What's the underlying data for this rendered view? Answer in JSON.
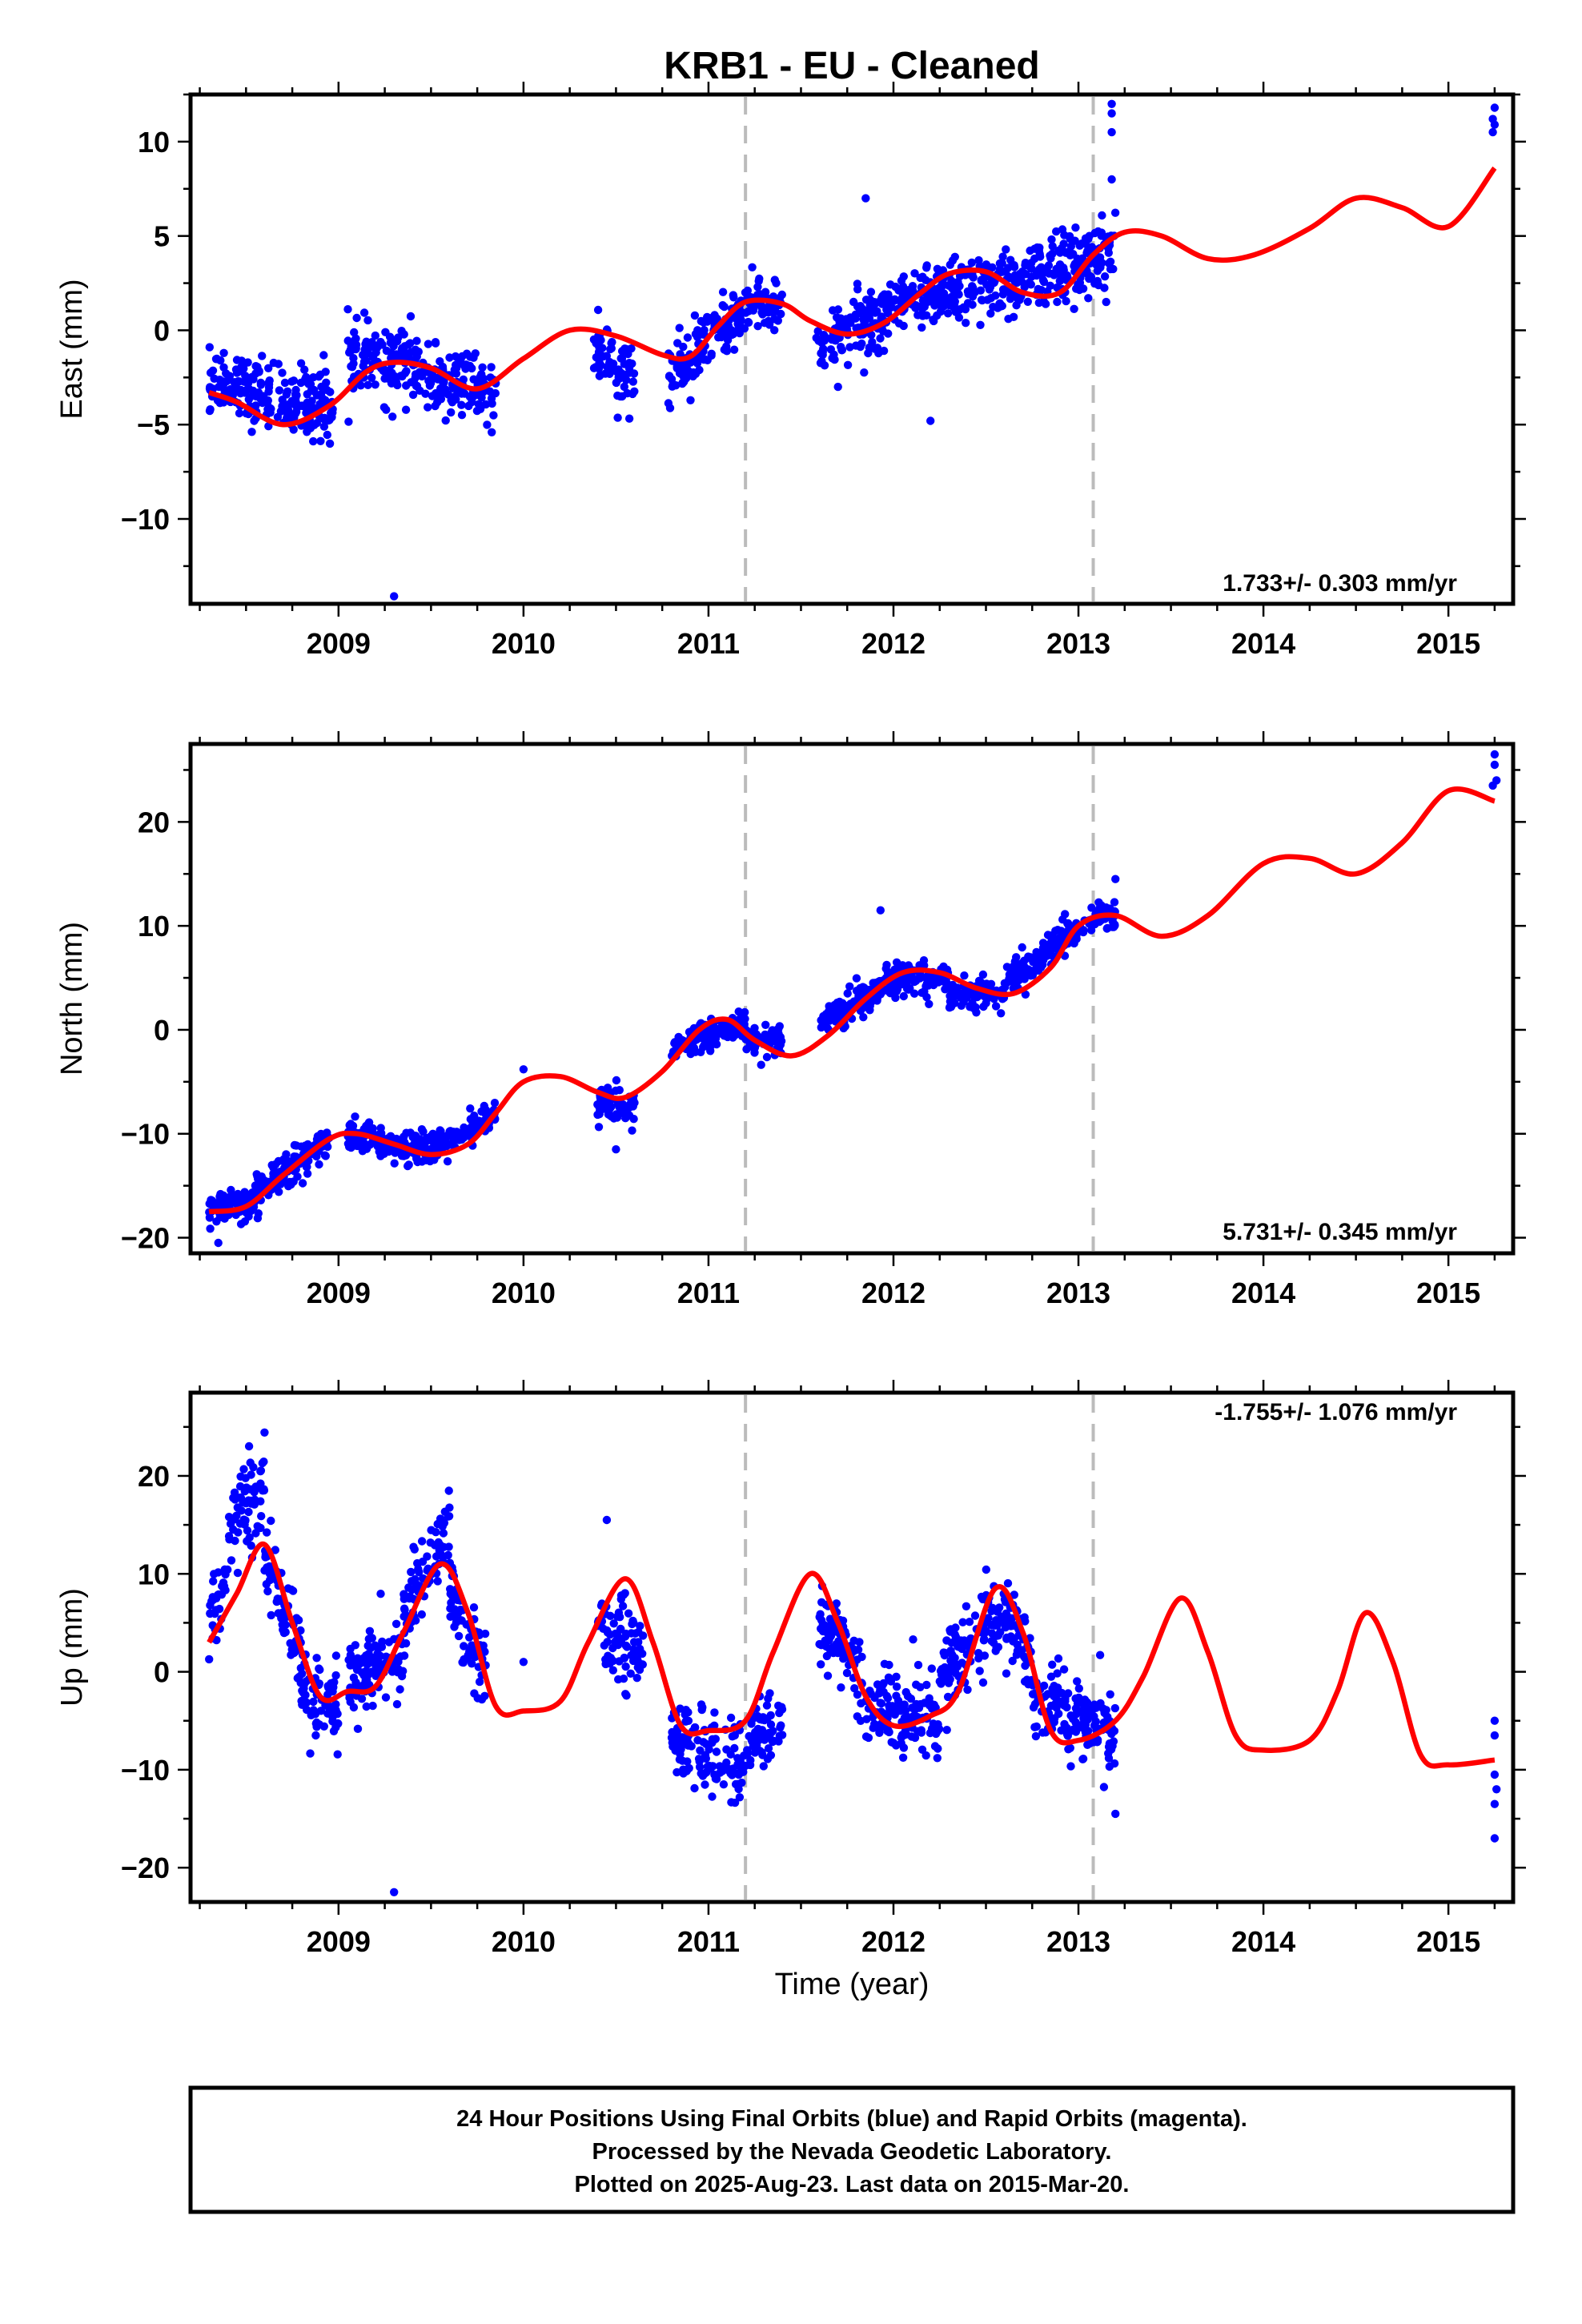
{
  "chart_data": {
    "type": "scatter",
    "title": "KRB1  - EU - Cleaned",
    "xlabel": "Time (year)",
    "xlim": [
      2008.2,
      2015.35
    ],
    "x_ticks": [
      2009,
      2010,
      2011,
      2012,
      2013,
      2014,
      2015
    ],
    "equipment_change_lines": [
      2011.2,
      2013.08
    ],
    "colors": {
      "observations": "#0000ff",
      "model": "#ff0000",
      "equipment_line": "#bbbbbb"
    },
    "legend": "none",
    "panels": [
      {
        "name": "East",
        "ylabel": "East (mm)",
        "ylim": [
          -14.5,
          12.5
        ],
        "y_ticks": [
          -10,
          -5,
          0,
          5,
          10
        ],
        "rate_text": "1.733+/- 0.303 mm/yr",
        "rate_position": "bottom-right",
        "model_curve": {
          "x": [
            2008.3,
            2008.45,
            2008.7,
            2008.95,
            2009.15,
            2009.3,
            2009.5,
            2009.75,
            2010.0,
            2010.25,
            2010.5,
            2010.75,
            2010.9,
            2011.05,
            2011.2,
            2011.4,
            2011.55,
            2011.75,
            2011.95,
            2012.15,
            2012.3,
            2012.5,
            2012.7,
            2012.9,
            2013.08,
            2013.25,
            2013.45,
            2013.7,
            2013.95,
            2014.25,
            2014.5,
            2014.75,
            2015.0,
            2015.25
          ],
          "y": [
            -3.3,
            -3.8,
            -5.0,
            -4.0,
            -2.2,
            -1.7,
            -2.0,
            -3.1,
            -1.5,
            0.0,
            -0.3,
            -1.3,
            -1.4,
            0.2,
            1.5,
            1.4,
            0.5,
            -0.2,
            0.4,
            2.0,
            3.0,
            3.1,
            2.0,
            2.0,
            4.0,
            5.2,
            5.0,
            3.8,
            4.0,
            5.4,
            7.0,
            6.5,
            5.5,
            8.6
          ]
        },
        "data_segments": [
          {
            "x": [
              2008.3,
              2008.97
            ],
            "mean": [
              -2.8,
              -4.0
            ],
            "spread": 1.5
          },
          {
            "x": [
              2009.05,
              2009.45
            ],
            "mean": [
              -1.5,
              -2.0
            ],
            "spread": 1.6
          },
          {
            "x": [
              2009.45,
              2009.85
            ],
            "mean": [
              -2.5,
              -3.3
            ],
            "spread": 1.4
          },
          {
            "x": [
              2010.38,
              2010.6
            ],
            "mean": [
              -1.6,
              -2.4
            ],
            "spread": 1.5
          },
          {
            "x": [
              2010.78,
              2010.95
            ],
            "mean": [
              -2.5,
              -1.2
            ],
            "spread": 1.5
          },
          {
            "x": [
              2010.95,
              2011.2
            ],
            "mean": [
              -0.8,
              1.2
            ],
            "spread": 1.2
          },
          {
            "x": [
              2011.2,
              2011.4
            ],
            "mean": [
              1.5,
              1.2
            ],
            "spread": 1.0
          },
          {
            "x": [
              2011.58,
              2011.95
            ],
            "mean": [
              -0.8,
              0.8
            ],
            "spread": 1.5
          },
          {
            "x": [
              2011.95,
              2012.55
            ],
            "mean": [
              1.2,
              2.5
            ],
            "spread": 1.3
          },
          {
            "x": [
              2012.55,
              2013.08
            ],
            "mean": [
              2.2,
              3.8
            ],
            "spread": 1.5
          },
          {
            "x": [
              2013.08,
              2013.2
            ],
            "mean": [
              4.0,
              4.3
            ],
            "spread": 1.5
          }
        ],
        "outliers": [
          [
            2009.3,
            -14.1
          ],
          [
            2011.85,
            7.0
          ],
          [
            2012.2,
            -4.8
          ],
          [
            2013.18,
            12.0
          ],
          [
            2013.18,
            11.5
          ],
          [
            2013.18,
            10.5
          ],
          [
            2013.18,
            8.0
          ],
          [
            2015.25,
            11.8
          ],
          [
            2015.24,
            11.2
          ],
          [
            2015.25,
            10.9
          ],
          [
            2015.24,
            10.5
          ],
          [
            2013.15,
            1.5
          ],
          [
            2011.7,
            -3.0
          ]
        ]
      },
      {
        "name": "North",
        "ylabel": "North (mm)",
        "ylim": [
          -21.5,
          27.5
        ],
        "y_ticks": [
          -20,
          -10,
          0,
          10,
          20
        ],
        "rate_text": "5.731+/- 0.345 mm/yr",
        "rate_position": "bottom-right",
        "model_curve": {
          "x": [
            2008.3,
            2008.5,
            2008.7,
            2008.95,
            2009.1,
            2009.3,
            2009.5,
            2009.7,
            2009.85,
            2010.0,
            2010.2,
            2010.4,
            2010.55,
            2010.75,
            2010.95,
            2011.1,
            2011.25,
            2011.45,
            2011.65,
            2011.85,
            2012.05,
            2012.25,
            2012.45,
            2012.65,
            2012.85,
            2013.0,
            2013.2,
            2013.45,
            2013.7,
            2014.0,
            2014.25,
            2014.5,
            2014.75,
            2015.0,
            2015.25
          ],
          "y": [
            -17.5,
            -17.0,
            -14.0,
            -10.5,
            -10.0,
            -11.0,
            -12.0,
            -11.0,
            -8.0,
            -5.0,
            -4.5,
            -6.0,
            -6.5,
            -4.0,
            0.0,
            1.0,
            -1.0,
            -2.5,
            -0.5,
            3.0,
            5.5,
            5.5,
            4.0,
            3.5,
            6.0,
            10.0,
            11.0,
            9.0,
            11.0,
            16.0,
            16.5,
            15.0,
            18.0,
            23.0,
            22.0
          ]
        },
        "data_segments": [
          {
            "x": [
              2008.3,
              2008.55
            ],
            "mean": [
              -17.5,
              -16.5
            ],
            "spread": 1.2
          },
          {
            "x": [
              2008.55,
              2008.95
            ],
            "mean": [
              -15.5,
              -10.5
            ],
            "spread": 1.4
          },
          {
            "x": [
              2009.05,
              2009.5
            ],
            "mean": [
              -10.0,
              -11.8
            ],
            "spread": 1.3
          },
          {
            "x": [
              2009.5,
              2009.85
            ],
            "mean": [
              -11.5,
              -8.5
            ],
            "spread": 1.3
          },
          {
            "x": [
              2010.4,
              2010.6
            ],
            "mean": [
              -7.0,
              -7.5
            ],
            "spread": 1.6
          },
          {
            "x": [
              2010.8,
              2011.2
            ],
            "mean": [
              -2.0,
              0.8
            ],
            "spread": 1.2
          },
          {
            "x": [
              2011.2,
              2011.4
            ],
            "mean": [
              -1.0,
              -1.5
            ],
            "spread": 1.2
          },
          {
            "x": [
              2011.6,
              2011.95
            ],
            "mean": [
              0.5,
              4.0
            ],
            "spread": 1.3
          },
          {
            "x": [
              2011.95,
              2012.3
            ],
            "mean": [
              5.0,
              4.8
            ],
            "spread": 1.2
          },
          {
            "x": [
              2012.3,
              2012.6
            ],
            "mean": [
              3.5,
              3.5
            ],
            "spread": 1.2
          },
          {
            "x": [
              2012.6,
              2013.08
            ],
            "mean": [
              4.5,
              11.0
            ],
            "spread": 1.3
          },
          {
            "x": [
              2013.08,
              2013.2
            ],
            "mean": [
              11.0,
              11.0
            ],
            "spread": 1.4
          }
        ],
        "outliers": [
          [
            2008.35,
            -20.5
          ],
          [
            2010.0,
            -3.8
          ],
          [
            2011.93,
            11.5
          ],
          [
            2015.25,
            26.5
          ],
          [
            2015.25,
            25.5
          ],
          [
            2015.26,
            24.0
          ],
          [
            2015.24,
            23.5
          ],
          [
            2010.5,
            -11.5
          ],
          [
            2013.2,
            14.5
          ]
        ]
      },
      {
        "name": "Up",
        "ylabel": "Up (mm)",
        "ylim": [
          -23.5,
          28.5
        ],
        "y_ticks": [
          -20,
          -10,
          0,
          10,
          20
        ],
        "rate_text": "-1.755+/- 1.076 mm/yr",
        "rate_position": "top-right",
        "model_curve": {
          "x": [
            2008.3,
            2008.45,
            2008.6,
            2008.75,
            2008.9,
            2009.05,
            2009.2,
            2009.35,
            2009.55,
            2009.7,
            2009.85,
            2010.0,
            2010.2,
            2010.35,
            2010.55,
            2010.7,
            2010.85,
            2011.0,
            2011.2,
            2011.35,
            2011.55,
            2011.7,
            2011.85,
            2012.0,
            2012.2,
            2012.35,
            2012.55,
            2012.7,
            2012.85,
            2013.0,
            2013.2,
            2013.35,
            2013.55,
            2013.7,
            2013.85,
            2014.0,
            2014.25,
            2014.4,
            2014.55,
            2014.7,
            2014.85,
            2015.0,
            2015.25
          ],
          "y": [
            3.0,
            8.0,
            13.0,
            5.0,
            -2.5,
            -2.0,
            -1.5,
            4.0,
            11.0,
            6.0,
            -3.5,
            -4.0,
            -3.0,
            3.0,
            9.5,
            3.0,
            -5.5,
            -6.0,
            -5.0,
            2.0,
            10.0,
            5.0,
            -2.5,
            -5.5,
            -4.5,
            -2.0,
            8.5,
            4.0,
            -6.0,
            -7.0,
            -5.0,
            -0.5,
            7.5,
            2.0,
            -6.5,
            -8.0,
            -7.0,
            -2.0,
            6.0,
            1.0,
            -8.5,
            -9.5,
            -9.0
          ]
        },
        "data_segments": [
          {
            "x": [
              2008.3,
              2008.4
            ],
            "mean": [
              4.0,
              10.0
            ],
            "spread": 3.5
          },
          {
            "x": [
              2008.4,
              2008.6
            ],
            "mean": [
              14.0,
              20.0
            ],
            "spread": 3.5
          },
          {
            "x": [
              2008.6,
              2008.8
            ],
            "mean": [
              12.0,
              2.0
            ],
            "spread": 3.5
          },
          {
            "x": [
              2008.8,
              2009.0
            ],
            "mean": [
              -2.0,
              -4.0
            ],
            "spread": 3.5
          },
          {
            "x": [
              2009.05,
              2009.35
            ],
            "mean": [
              -1.0,
              1.5
            ],
            "spread": 3.5
          },
          {
            "x": [
              2009.35,
              2009.6
            ],
            "mean": [
              6.0,
              15.0
            ],
            "spread": 3.5
          },
          {
            "x": [
              2009.6,
              2009.8
            ],
            "mean": [
              8.0,
              0.0
            ],
            "spread": 3.5
          },
          {
            "x": [
              2010.4,
              2010.65
            ],
            "mean": [
              4.0,
              2.0
            ],
            "spread": 3.5
          },
          {
            "x": [
              2010.8,
              2011.2
            ],
            "mean": [
              -7.0,
              -10.0
            ],
            "spread": 3.5
          },
          {
            "x": [
              2011.2,
              2011.4
            ],
            "mean": [
              -7.0,
              -5.0
            ],
            "spread": 3.5
          },
          {
            "x": [
              2011.6,
              2011.85
            ],
            "mean": [
              5.0,
              0.0
            ],
            "spread": 3.0
          },
          {
            "x": [
              2011.85,
              2012.25
            ],
            "mean": [
              -4.0,
              -5.0
            ],
            "spread": 3.5
          },
          {
            "x": [
              2012.25,
              2012.5
            ],
            "mean": [
              0.0,
              4.0
            ],
            "spread": 3.5
          },
          {
            "x": [
              2012.5,
              2012.75
            ],
            "mean": [
              7.0,
              2.0
            ],
            "spread": 3.5
          },
          {
            "x": [
              2012.75,
              2013.08
            ],
            "mean": [
              -3.0,
              -5.0
            ],
            "spread": 3.5
          },
          {
            "x": [
              2013.08,
              2013.2
            ],
            "mean": [
              -4.0,
              -8.0
            ],
            "spread": 3.5
          }
        ],
        "outliers": [
          [
            2009.3,
            -22.5
          ],
          [
            2010.45,
            15.5
          ],
          [
            2015.25,
            -5.0
          ],
          [
            2015.25,
            -6.5
          ],
          [
            2015.25,
            -10.5
          ],
          [
            2015.26,
            -12.0
          ],
          [
            2015.25,
            -13.5
          ],
          [
            2015.25,
            -17.0
          ],
          [
            2010.0,
            1.0
          ],
          [
            2013.2,
            -14.5
          ]
        ]
      }
    ]
  },
  "footer": {
    "line1": "24 Hour Positions Using Final Orbits (blue) and Rapid Orbits (magenta).",
    "line2": "Processed by the Nevada Geodetic Laboratory.",
    "line3": "Plotted on 2025-Aug-23. Last data on 2015-Mar-20."
  }
}
